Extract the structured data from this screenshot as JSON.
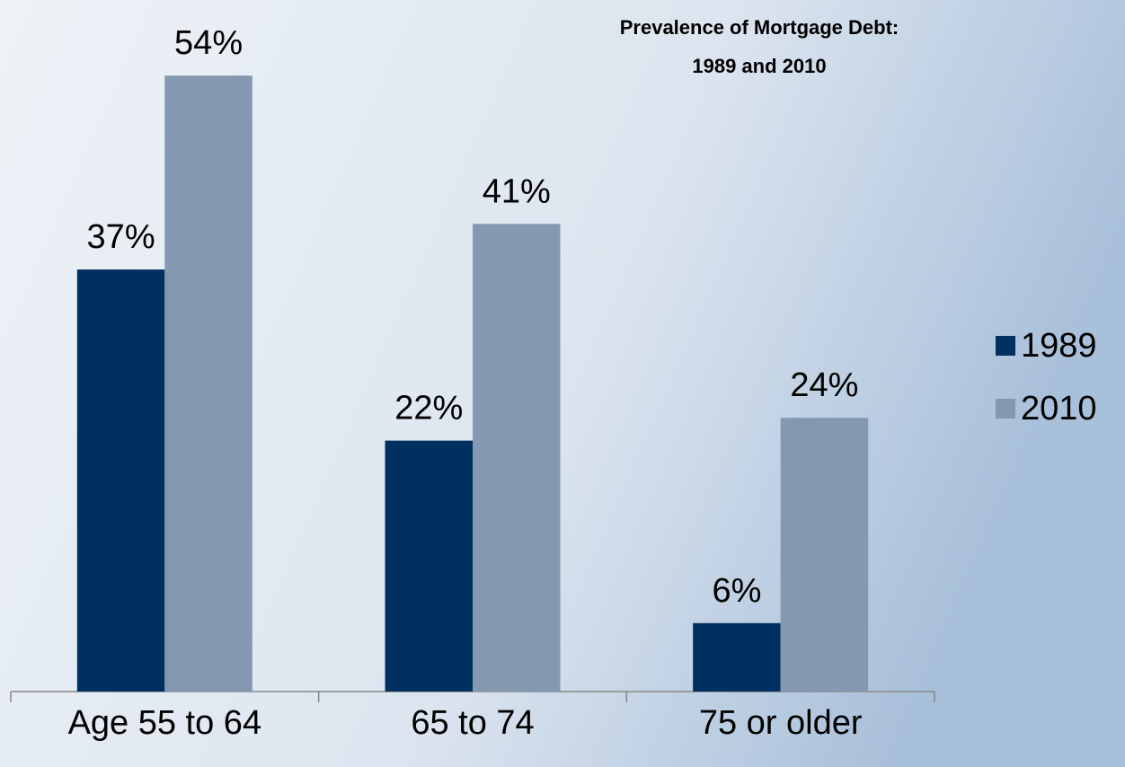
{
  "chart_data": {
    "type": "bar",
    "title": [
      "Prevalence of Mortgage Debt:",
      "1989 and 2010"
    ],
    "categories": [
      "Age 55 to 64",
      "65 to 74",
      "75 or older"
    ],
    "series": [
      {
        "name": "1989",
        "color": "#00305f",
        "values": [
          37,
          22,
          6
        ],
        "value_labels": [
          "37%",
          "22%",
          "6%"
        ]
      },
      {
        "name": "2010",
        "color": "#8499b1",
        "values": [
          54,
          41,
          24
        ],
        "value_labels": [
          "54%",
          "41%",
          "24%"
        ]
      }
    ],
    "legend": "right"
  }
}
